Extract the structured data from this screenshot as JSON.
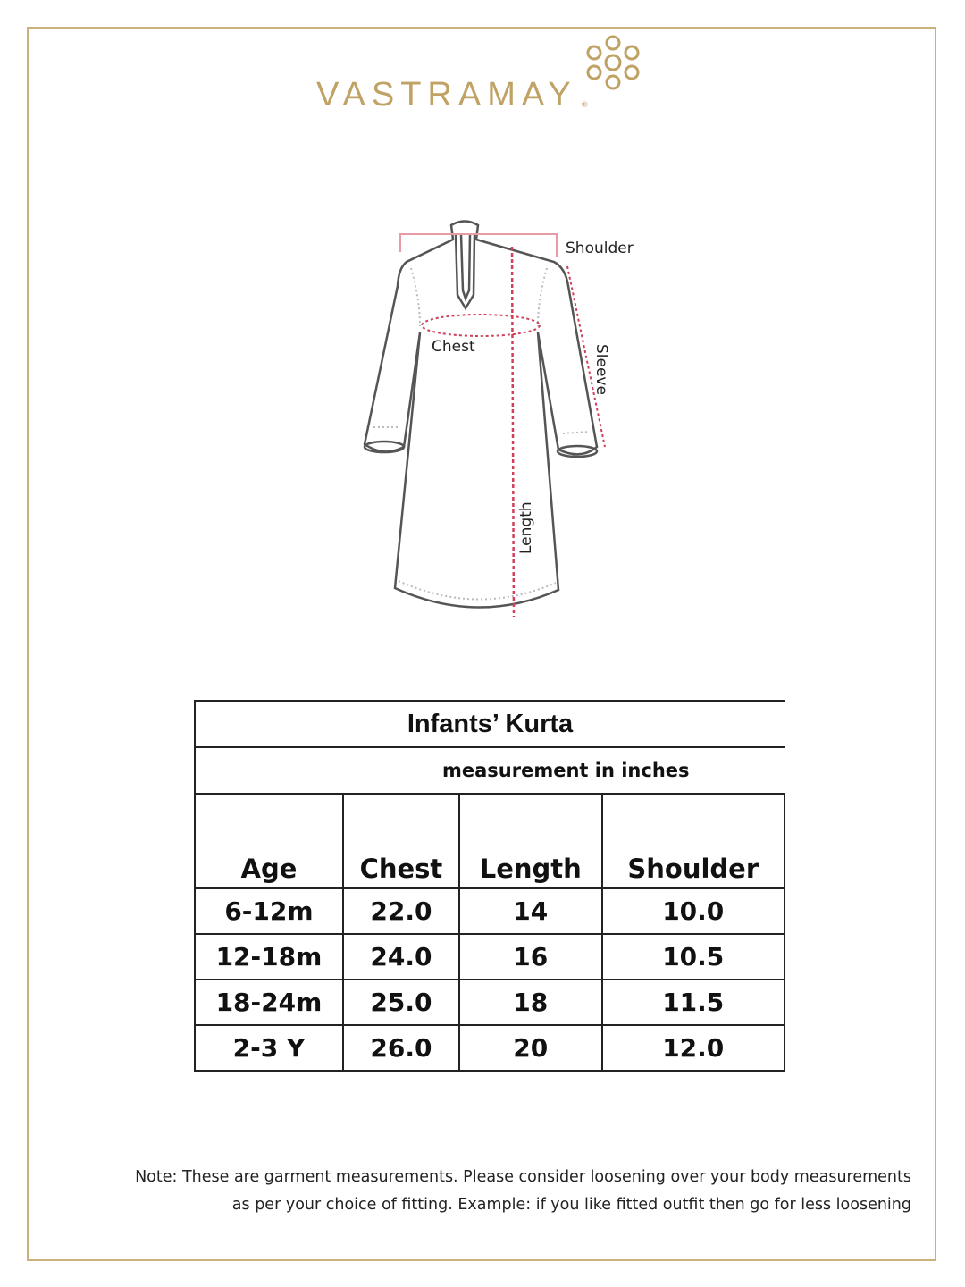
{
  "brand": {
    "name": "VASTRAMAY",
    "registered": "®"
  },
  "diagram": {
    "labels": {
      "shoulder": "Shoulder",
      "chest": "Chest",
      "sleeve": "Sleeve",
      "length": "Length"
    },
    "colors": {
      "outline": "#555555",
      "measure": "#d0405a"
    }
  },
  "table": {
    "title": "Infants’ Kurta",
    "unit_note": "measurement in inches",
    "headers": [
      "Age",
      "Chest",
      "Length",
      "Shoulder"
    ],
    "rows": [
      [
        "6-12m",
        "22.0",
        "14",
        "10.0"
      ],
      [
        "12-18m",
        "24.0",
        "16",
        "10.5"
      ],
      [
        "18-24m",
        "25.0",
        "18",
        "11.5"
      ],
      [
        "2-3 Y",
        "26.0",
        "20",
        "12.0"
      ]
    ]
  },
  "note": {
    "line1": "Note: These are garment measurements. Please consider loosening over your body measurements",
    "line2": "as per your choice of fitting. Example: if you like fitted outfit then go for less loosening"
  },
  "colors": {
    "border": "#c8b27a",
    "brand": "#bfa264"
  }
}
